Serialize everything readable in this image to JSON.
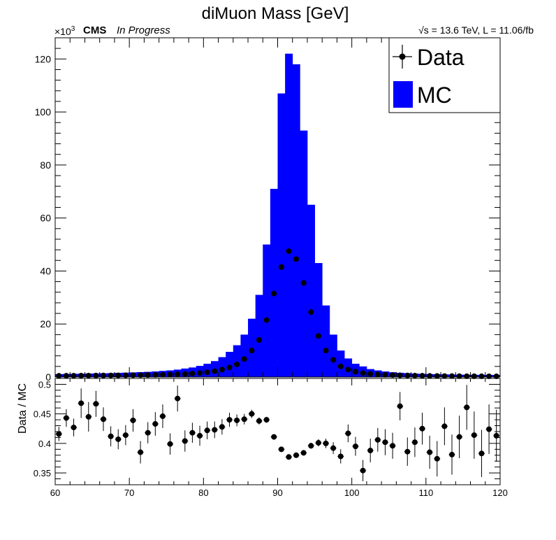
{
  "chart_data": [
    {
      "type": "bar",
      "title": "diMuon Mass [GeV]",
      "header_left_bold": "CMS",
      "header_left_italic": "In Progress",
      "header_right": "√s = 13.6 TeV, L = 11.06/fb",
      "y_multiplier": "×10",
      "y_multiplier_exp": "3",
      "xlim": [
        60,
        120
      ],
      "ylim": [
        0,
        128
      ],
      "x_ticks": [
        "60",
        "70",
        "80",
        "90",
        "100",
        "110",
        "120"
      ],
      "y_ticks": [
        "0",
        "20",
        "40",
        "60",
        "80",
        "100",
        "120"
      ],
      "y_tick_values": [
        0,
        20,
        40,
        60,
        80,
        100,
        120
      ],
      "legend_position": "top-right",
      "bin_width": 1,
      "bin_low_edges": [
        60,
        61,
        62,
        63,
        64,
        65,
        66,
        67,
        68,
        69,
        70,
        71,
        72,
        73,
        74,
        75,
        76,
        77,
        78,
        79,
        80,
        81,
        82,
        83,
        84,
        85,
        86,
        87,
        88,
        89,
        90,
        91,
        92,
        93,
        94,
        95,
        96,
        97,
        98,
        99,
        100,
        101,
        102,
        103,
        104,
        105,
        106,
        107,
        108,
        109,
        110,
        111,
        112,
        113,
        114,
        115,
        116,
        117,
        118,
        119
      ],
      "series": [
        {
          "name": "Data",
          "marker": "point",
          "color": "#000000",
          "x": [
            60.5,
            61.5,
            62.5,
            63.5,
            64.5,
            65.5,
            66.5,
            67.5,
            68.5,
            69.5,
            70.5,
            71.5,
            72.5,
            73.5,
            74.5,
            75.5,
            76.5,
            77.5,
            78.5,
            79.5,
            80.5,
            81.5,
            82.5,
            83.5,
            84.5,
            85.5,
            86.5,
            87.5,
            88.5,
            89.5,
            90.5,
            91.5,
            92.5,
            93.5,
            94.5,
            95.5,
            96.5,
            97.5,
            98.5,
            99.5,
            100.5,
            101.5,
            102.5,
            103.5,
            104.5,
            105.5,
            106.5,
            107.5,
            108.5,
            109.5,
            110.5,
            111.5,
            112.5,
            113.5,
            114.5,
            115.5,
            116.5,
            117.5,
            118.5,
            119.5
          ],
          "values": [
            0.45,
            0.48,
            0.5,
            0.52,
            0.54,
            0.56,
            0.58,
            0.6,
            0.62,
            0.65,
            0.68,
            0.72,
            0.76,
            0.82,
            0.88,
            0.96,
            1.05,
            1.15,
            1.3,
            1.5,
            1.8,
            2.2,
            2.8,
            3.6,
            4.8,
            6.8,
            10.0,
            14.0,
            21.5,
            31.5,
            41.5,
            47.5,
            44.5,
            35.5,
            24.5,
            15.5,
            10.0,
            6.5,
            4.0,
            2.8,
            2.0,
            1.5,
            1.2,
            1.0,
            0.85,
            0.75,
            0.65,
            0.58,
            0.52,
            0.48,
            0.44,
            0.4,
            0.37,
            0.35,
            0.33,
            0.31,
            0.3,
            0.29,
            0.28,
            0.27
          ]
        },
        {
          "name": "MC",
          "marker": "fill",
          "color": "#0000ff",
          "x": [
            60.5,
            61.5,
            62.5,
            63.5,
            64.5,
            65.5,
            66.5,
            67.5,
            68.5,
            69.5,
            70.5,
            71.5,
            72.5,
            73.5,
            74.5,
            75.5,
            76.5,
            77.5,
            78.5,
            79.5,
            80.5,
            81.5,
            82.5,
            83.5,
            84.5,
            85.5,
            86.5,
            87.5,
            88.5,
            89.5,
            90.5,
            91.5,
            92.5,
            93.5,
            94.5,
            95.5,
            96.5,
            97.5,
            98.5,
            99.5,
            100.5,
            101.5,
            102.5,
            103.5,
            104.5,
            105.5,
            106.5,
            107.5,
            108.5,
            109.5,
            110.5,
            111.5,
            112.5,
            113.5,
            114.5,
            115.5,
            116.5,
            117.5,
            118.5,
            119.5
          ],
          "values": [
            1.1,
            1.15,
            1.2,
            1.25,
            1.3,
            1.35,
            1.4,
            1.45,
            1.55,
            1.65,
            1.75,
            1.85,
            1.95,
            2.1,
            2.3,
            2.5,
            2.8,
            3.2,
            3.6,
            4.2,
            5.0,
            6.0,
            7.5,
            9.5,
            12.0,
            16.0,
            22.0,
            31.0,
            50.0,
            71.0,
            107.0,
            122.0,
            118.0,
            93.0,
            65.0,
            43.0,
            27.0,
            16.0,
            10.0,
            7.0,
            5.0,
            4.0,
            3.0,
            2.5,
            2.1,
            1.8,
            1.6,
            1.45,
            1.3,
            1.2,
            1.1,
            1.05,
            1.0,
            0.95,
            0.9,
            0.88,
            0.85,
            0.82,
            0.8,
            0.78
          ]
        }
      ]
    },
    {
      "type": "scatter",
      "ylabel": "Data / MC",
      "xlim": [
        60,
        120
      ],
      "ylim": [
        0.33,
        0.51
      ],
      "x_ticks": [
        "60",
        "70",
        "80",
        "90",
        "100",
        "110",
        "120"
      ],
      "y_ticks": [
        "0.35",
        "0.4",
        "0.45",
        "0.5"
      ],
      "y_tick_values": [
        0.35,
        0.4,
        0.45,
        0.5
      ],
      "series": [
        {
          "name": "Data / MC",
          "x": [
            60.5,
            61.5,
            62.5,
            63.5,
            64.5,
            65.5,
            66.5,
            67.5,
            68.5,
            69.5,
            70.5,
            71.5,
            72.5,
            73.5,
            74.5,
            75.5,
            76.5,
            77.5,
            78.5,
            79.5,
            80.5,
            81.5,
            82.5,
            83.5,
            84.5,
            85.5,
            86.5,
            87.5,
            88.5,
            89.5,
            90.5,
            91.5,
            92.5,
            93.5,
            94.5,
            95.5,
            96.5,
            97.5,
            98.5,
            99.5,
            100.5,
            101.5,
            102.5,
            103.5,
            104.5,
            105.5,
            106.5,
            107.5,
            108.5,
            109.5,
            110.5,
            111.5,
            112.5,
            113.5,
            114.5,
            115.5,
            116.5,
            117.5,
            118.5,
            119.5
          ],
          "values": [
            0.416,
            0.443,
            0.427,
            0.468,
            0.445,
            0.467,
            0.441,
            0.412,
            0.407,
            0.414,
            0.439,
            0.385,
            0.418,
            0.433,
            0.446,
            0.399,
            0.476,
            0.404,
            0.418,
            0.413,
            0.422,
            0.423,
            0.428,
            0.44,
            0.439,
            0.441,
            0.45,
            0.438,
            0.44,
            0.411,
            0.39,
            0.377,
            0.38,
            0.384,
            0.396,
            0.401,
            0.4,
            0.392,
            0.378,
            0.417,
            0.395,
            0.354,
            0.388,
            0.406,
            0.402,
            0.396,
            0.463,
            0.386,
            0.402,
            0.425,
            0.385,
            0.374,
            0.429,
            0.381,
            0.411,
            0.461,
            0.414,
            0.383,
            0.424,
            0.413
          ],
          "errors": [
            0.012,
            0.015,
            0.015,
            0.025,
            0.025,
            0.022,
            0.02,
            0.017,
            0.017,
            0.017,
            0.019,
            0.019,
            0.018,
            0.02,
            0.02,
            0.018,
            0.022,
            0.018,
            0.017,
            0.017,
            0.015,
            0.014,
            0.013,
            0.012,
            0.01,
            0.009,
            0.007,
            0.006,
            0.005,
            0.004,
            0.004,
            0.004,
            0.004,
            0.004,
            0.005,
            0.006,
            0.008,
            0.01,
            0.012,
            0.015,
            0.016,
            0.018,
            0.02,
            0.02,
            0.022,
            0.022,
            0.024,
            0.024,
            0.025,
            0.027,
            0.028,
            0.03,
            0.032,
            0.034,
            0.036,
            0.038,
            0.04,
            0.04,
            0.042,
            0.044
          ]
        }
      ]
    }
  ]
}
